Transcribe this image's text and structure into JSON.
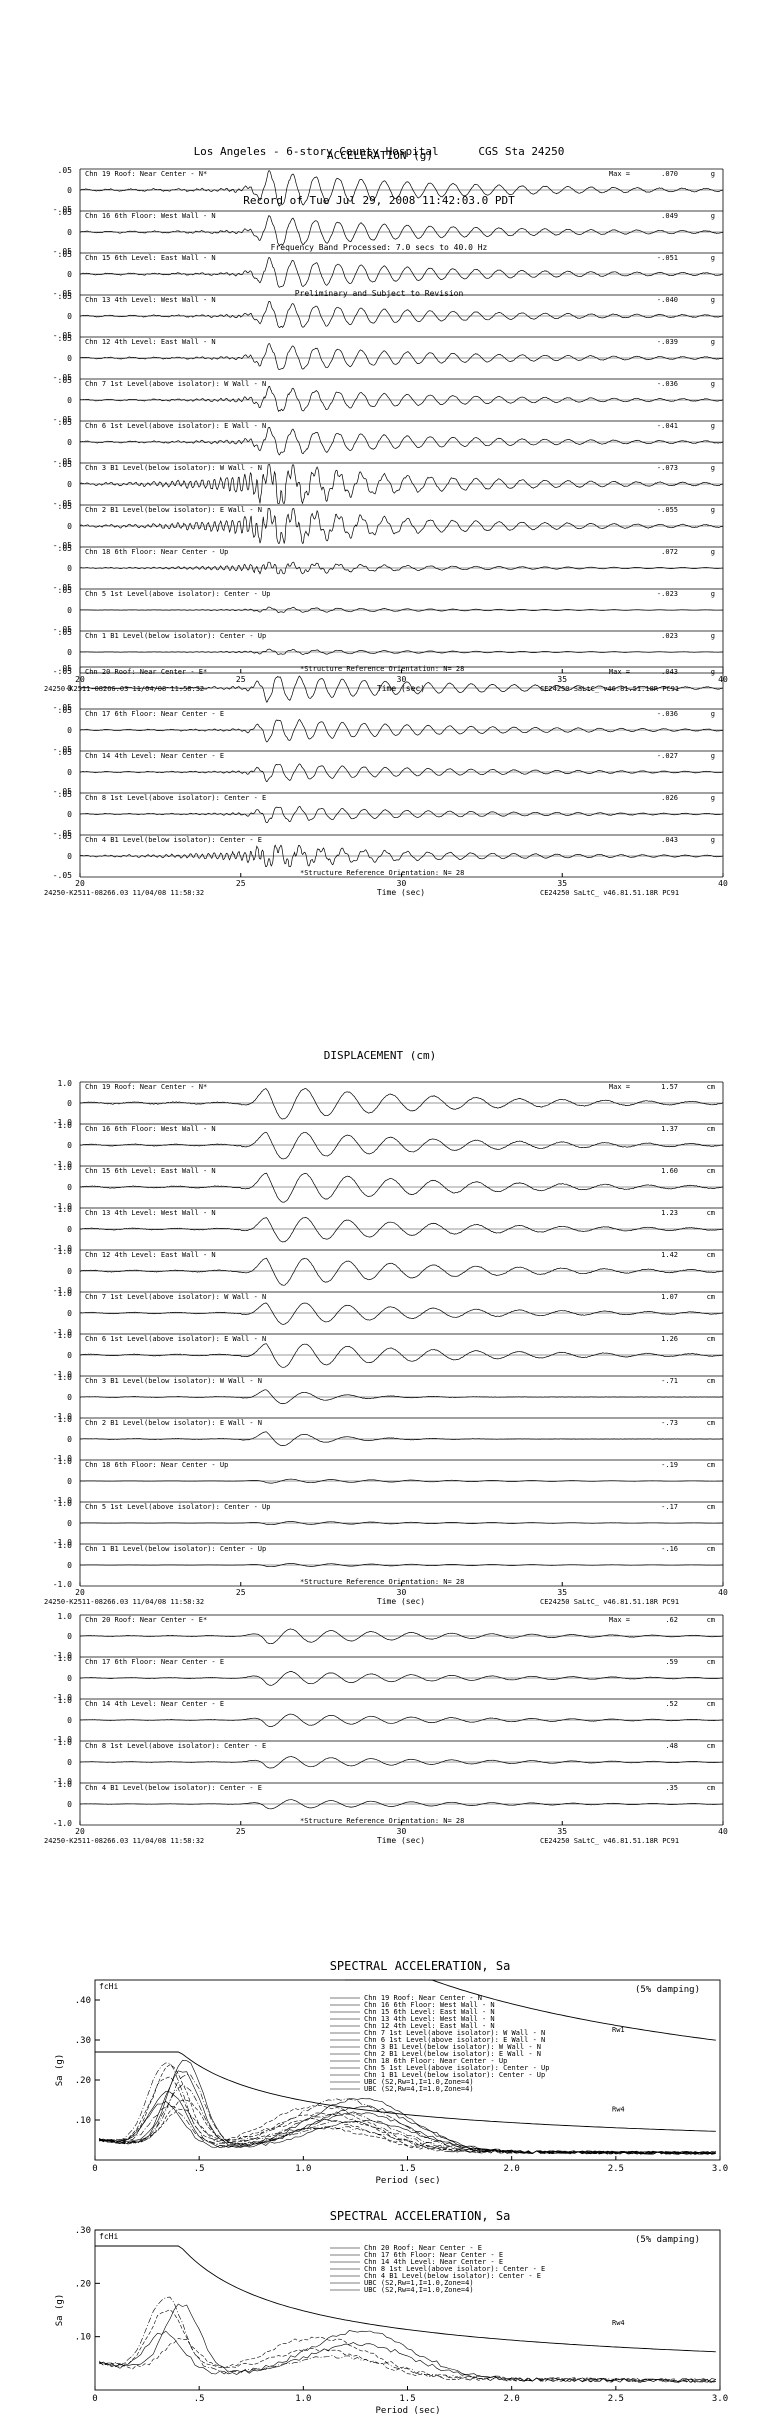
{
  "header": {
    "line1": "Los Angeles - 6-story County Hospital      CGS Sta 24250",
    "line2": "Record of Tue Jul 29, 2008 11:42:03.0 PDT",
    "line3": "Frequency Band Processed: 7.0 secs to 40.0 Hz",
    "line4": "Preliminary and Subject to Revision"
  },
  "chart_data": [
    {
      "id": "acc_ns",
      "type": "line",
      "title": "ACCELERATION (g)",
      "xlabel": "Time (sec)",
      "xlim": [
        20,
        40
      ],
      "xticks": [
        20,
        25,
        30,
        35,
        40
      ],
      "ytick_top": ".05",
      "ytick_mid": "0",
      "ytick_bottom": "-.05",
      "unit": "g",
      "footer_left": "24250-K2511-08266.03 11/04/08 11:58:32",
      "footer_right": "CE24250  SaLtC_  v46.81.51.18R PC91",
      "note": "*Structure Reference Orientation: N= 28",
      "series": [
        {
          "label": "Chn 19  Roof: Near Center - N*",
          "max_label": "Max =",
          "max": ".070",
          "amp": 1.0,
          "freq": 1.4,
          "hf": 0.15
        },
        {
          "label": "Chn 16  6th Floor: West Wall - N",
          "max": ".049",
          "amp": 0.85,
          "freq": 1.4,
          "hf": 0.15
        },
        {
          "label": "Chn 15  6th Level: East Wall - N",
          "max": "-.051",
          "amp": 0.85,
          "freq": 1.4,
          "hf": 0.15
        },
        {
          "label": "Chn 13  4th Level: West Wall - N",
          "max": "-.040",
          "amp": 0.75,
          "freq": 1.4,
          "hf": 0.18
        },
        {
          "label": "Chn 12  4th Level: East Wall - N",
          "max": "-.039",
          "amp": 0.75,
          "freq": 1.4,
          "hf": 0.18
        },
        {
          "label": "Chn 7  1st Level(above isolator): W Wall - N",
          "max": "-.036",
          "amp": 0.7,
          "freq": 1.4,
          "hf": 0.25
        },
        {
          "label": "Chn 6  1st Level(above isolator): E Wall - N",
          "max": "-.041",
          "amp": 0.75,
          "freq": 1.4,
          "hf": 0.25
        },
        {
          "label": "Chn 3  B1 Level(below isolator): W Wall - N",
          "max": "-.073",
          "amp": 1.0,
          "freq": 1.4,
          "hf": 0.9
        },
        {
          "label": "Chn 2  B1 Level(below isolator): E Wall - N",
          "max": "-.055",
          "amp": 0.9,
          "freq": 1.4,
          "hf": 0.9
        },
        {
          "label": "Chn 18  6th Floor: Near Center - Up",
          "max": ".072",
          "amp": 0.3,
          "freq": 1.4,
          "hf": 1.0
        },
        {
          "label": "Chn 5  1st Level(above isolator): Center - Up",
          "max": "-.023",
          "amp": 0.15,
          "freq": 1.4,
          "hf": 0.4
        },
        {
          "label": "Chn 1  B1 Level(below isolator): Center - Up",
          "max": ".023",
          "amp": 0.15,
          "freq": 1.4,
          "hf": 0.4
        }
      ]
    },
    {
      "id": "acc_ew",
      "type": "line",
      "xlabel": "Time (sec)",
      "xlim": [
        20,
        40
      ],
      "xticks": [
        20,
        25,
        30,
        35,
        40
      ],
      "ytick_top": ".05",
      "ytick_mid": "0",
      "ytick_bottom": "-.05",
      "unit": "g",
      "footer_left": "24250-K2511-08266.03 11/04/08 11:58:32",
      "footer_right": "CE24250  SaLtC_  v46.81.51.18R PC91",
      "note": "*Structure Reference Orientation: N= 28",
      "series": [
        {
          "label": "Chn 20  Roof: Near Center - E*",
          "max_label": "Max =",
          "max": ".043",
          "amp": 0.75,
          "freq": 1.5,
          "hf": 0.15
        },
        {
          "label": "Chn 17  6th Floor: Near Center - E",
          "max": "-.036",
          "amp": 0.65,
          "freq": 1.5,
          "hf": 0.15
        },
        {
          "label": "Chn 14  4th Level: Near Center - E",
          "max": "-.027",
          "amp": 0.5,
          "freq": 1.5,
          "hf": 0.2
        },
        {
          "label": "Chn 8  1st Level(above isolator): Center - E",
          "max": ".026",
          "amp": 0.45,
          "freq": 1.5,
          "hf": 0.25
        },
        {
          "label": "Chn 4  B1 Level(below isolator): Center - E",
          "max": ".043",
          "amp": 0.55,
          "freq": 1.5,
          "hf": 0.9
        }
      ]
    },
    {
      "id": "disp_ns",
      "type": "line",
      "title": "DISPLACEMENT (cm)",
      "xlabel": "Time (sec)",
      "xlim": [
        20,
        40
      ],
      "xticks": [
        20,
        25,
        30,
        35,
        40
      ],
      "ytick_top": "1.0",
      "ytick_mid": "0",
      "ytick_bottom": "-1.0",
      "unit": "cm",
      "footer_left": "24250-K2511-08266.03 11/04/08 11:58:32",
      "footer_right": "CE24250  SaLtC_  v46.81.51.18R PC91",
      "note": "*Structure Reference Orientation: N= 28",
      "series": [
        {
          "label": "Chn 19  Roof: Near Center - N*",
          "max_label": "Max =",
          "max": "1.57",
          "amp": 1.0,
          "freq": 0.75,
          "hf": 0
        },
        {
          "label": "Chn 16  6th Floor: West Wall - N",
          "max": "1.37",
          "amp": 0.88,
          "freq": 0.75,
          "hf": 0
        },
        {
          "label": "Chn 15  6th Level: East Wall - N",
          "max": "1.60",
          "amp": 0.95,
          "freq": 0.75,
          "hf": 0
        },
        {
          "label": "Chn 13  4th Level: West Wall - N",
          "max": "1.23",
          "amp": 0.8,
          "freq": 0.75,
          "hf": 0
        },
        {
          "label": "Chn 12  4th Level: East Wall - N",
          "max": "1.42",
          "amp": 0.88,
          "freq": 0.75,
          "hf": 0
        },
        {
          "label": "Chn 7  1st Level(above isolator): W Wall - N",
          "max": "1.07",
          "amp": 0.7,
          "freq": 0.75,
          "hf": 0
        },
        {
          "label": "Chn 6  1st Level(above isolator): E Wall - N",
          "max": "1.26",
          "amp": 0.78,
          "freq": 0.75,
          "hf": 0
        },
        {
          "label": "Chn 3  B1 Level(below isolator): W Wall - N",
          "max": "-.71",
          "amp": 0.5,
          "freq": 0.75,
          "hf": 0,
          "short": true
        },
        {
          "label": "Chn 2  B1 Level(below isolator): E Wall - N",
          "max": "-.73",
          "amp": 0.5,
          "freq": 0.75,
          "hf": 0,
          "short": true
        },
        {
          "label": "Chn 18  6th Floor: Near Center - Up",
          "max": "-.19",
          "amp": 0.12,
          "freq": 0.8,
          "hf": 0
        },
        {
          "label": "Chn 5  1st Level(above isolator): Center - Up",
          "max": "-.17",
          "amp": 0.1,
          "freq": 0.8,
          "hf": 0
        },
        {
          "label": "Chn 1  B1 Level(below isolator): Center - Up",
          "max": "-.16",
          "amp": 0.1,
          "freq": 0.8,
          "hf": 0
        }
      ]
    },
    {
      "id": "disp_ew",
      "type": "line",
      "xlabel": "Time (sec)",
      "xlim": [
        20,
        40
      ],
      "xticks": [
        20,
        25,
        30,
        35,
        40
      ],
      "ytick_top": "1.0",
      "ytick_mid": "0",
      "ytick_bottom": "-1.0",
      "unit": "cm",
      "footer_left": "24250-K2511-08266.03 11/04/08 11:58:32",
      "footer_right": "CE24250  SaLtC_  v46.81.51.18R PC91",
      "note": "*Structure Reference Orientation: N= 28",
      "series": [
        {
          "label": "Chn 20  Roof: Near Center - E*",
          "max_label": "Max =",
          "max": ".62",
          "amp": 0.45,
          "freq": 0.8,
          "hf": 0
        },
        {
          "label": "Chn 17  6th Floor: Near Center - E",
          "max": ".59",
          "amp": 0.42,
          "freq": 0.8,
          "hf": 0
        },
        {
          "label": "Chn 14  4th Level: Near Center - E",
          "max": ".52",
          "amp": 0.38,
          "freq": 0.8,
          "hf": 0
        },
        {
          "label": "Chn 8  1st Level(above isolator): Center - E",
          "max": ".48",
          "amp": 0.35,
          "freq": 0.8,
          "hf": 0
        },
        {
          "label": "Chn 4  B1 Level(below isolator): Center - E",
          "max": ".35",
          "amp": 0.28,
          "freq": 0.8,
          "hf": 0
        }
      ]
    },
    {
      "id": "sa_ns",
      "type": "line",
      "title": "SPECTRAL ACCELERATION, Sa",
      "xlabel": "Period (sec)",
      "ylabel": "Sa (g)",
      "xlim": [
        0,
        3.0
      ],
      "ylim": [
        0,
        0.45
      ],
      "xticks": [
        "0",
        ".5",
        "1.0",
        "1.5",
        "2.0",
        "2.5",
        "3.0"
      ],
      "yticks": [
        ".10",
        ".20",
        ".30",
        ".40"
      ],
      "damping": "(5% damping)",
      "fchi_label": "fcHi",
      "annot_rw1": "Rw1",
      "annot_rw4": "Rw4",
      "legend": [
        "Chn 19  Roof: Near Center - N",
        "Chn 16  6th Floor: West Wall - N",
        "Chn 15  6th Level: East Wall - N",
        "Chn 13  4th Level: West Wall - N",
        "Chn 12  4th Level: East Wall - N",
        "Chn 7  1st Level(above isolator): W Wall - N",
        "Chn 6  1st Level(above isolator): E Wall - N",
        "Chn 3  B1 Level(below isolator): W Wall - N",
        "Chn 2  B1 Level(below isolator): E Wall - N",
        "Chn 18  6th Floor: Near Center - Up",
        "Chn 5  1st Level(above isolator): Center - Up",
        "Chn 1  B1 Level(below isolator): Center - Up",
        "UBC (S2,Rw=1,I=1.0,Zone=4)",
        "UBC (S2,Rw=4,I=1.0,Zone=4)"
      ],
      "ubc_rw1_topline": 0.45,
      "ubc_rw4_plateau": 0.27
    },
    {
      "id": "sa_ew",
      "type": "line",
      "title": "SPECTRAL ACCELERATION, Sa",
      "xlabel": "Period (sec)",
      "ylabel": "Sa (g)",
      "xlim": [
        0,
        3.0
      ],
      "ylim": [
        0,
        0.3
      ],
      "xticks": [
        "0",
        ".5",
        "1.0",
        "1.5",
        "2.0",
        "2.5",
        "3.0"
      ],
      "yticks": [
        ".10",
        ".20",
        ".30"
      ],
      "damping": "(5% damping)",
      "fchi_label": "fcHi",
      "annot_rw4": "Rw4",
      "legend": [
        "Chn 20  Roof: Near Center - E",
        "Chn 17  6th Floor: Near Center - E",
        "Chn 14  4th Level: Near Center - E",
        "Chn 8  1st Level(above isolator): Center - E",
        "Chn 4  B1 Level(below isolator): Center - E",
        "UBC (S2,Rw=1,I=1.0,Zone=4)",
        "UBC (S2,Rw=4,I=1.0,Zone=4)"
      ],
      "ubc_rw4_plateau": 0.27
    }
  ]
}
